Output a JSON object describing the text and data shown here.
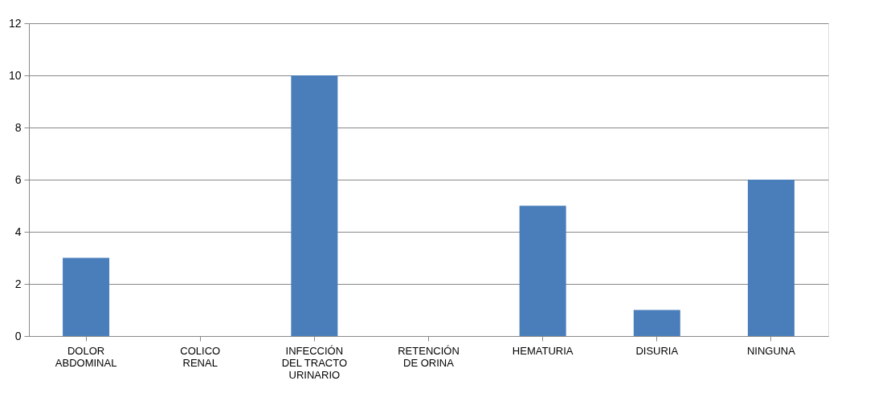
{
  "chart_data": {
    "type": "bar",
    "categories": [
      "DOLOR ABDOMINAL",
      "COLICO RENAL",
      "INFECCIÓN DEL TRACTO URINARIO",
      "RETENCIÓN DE ORINA",
      "HEMATURIA",
      "DISURIA",
      "NINGUNA"
    ],
    "values": [
      3,
      0,
      10,
      0,
      5,
      1,
      6
    ],
    "color": "#4a7ebb",
    "ylim": [
      0,
      12
    ],
    "yticks": [
      0,
      2,
      4,
      6,
      8,
      10,
      12
    ],
    "grid": "y"
  }
}
